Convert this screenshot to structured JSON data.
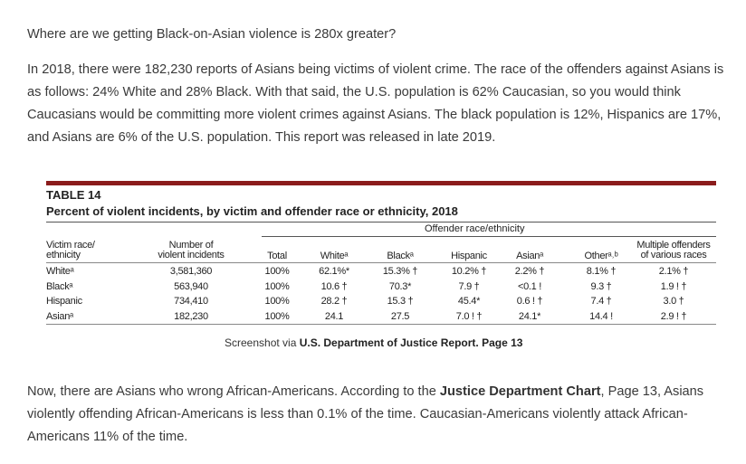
{
  "article": {
    "question": "Where are we getting Black-on-Asian violence is 280x greater?",
    "paragraph": "In 2018, there were 182,230 reports of Asians being victims of violent crime. The race of the offenders against Asians is as follows: 24% White and 28% Black. With that said, the U.S. population is 62% Caucasian, so you would think Caucasians would be committing more violent crimes against Asians. The black population is 12%, Hispanics are 17%, and Asians are 6% of the U.S. population. This report was released in late 2019.",
    "closing": {
      "before": "Now, there are Asians who wrong African-Americans. According to the ",
      "bold": "Justice Department Chart",
      "after": ", Page 13, Asians violently offending African-Americans is less than 0.1% of the time. Caucasian-Americans violently attack African-Americans 11% of the time."
    }
  },
  "table": {
    "label": "TABLE 14",
    "caption": "Percent of violent incidents, by victim and offender race or ethnicity, 2018",
    "group_header": "Offender race/ethnicity",
    "columns": [
      {
        "l1": "Victim race/",
        "l2": "ethnicity"
      },
      {
        "l1": "Number of",
        "l2": "violent incidents"
      },
      {
        "l1": "",
        "l2": "Total"
      },
      {
        "l1": "",
        "l2": "Whiteᵃ"
      },
      {
        "l1": "",
        "l2": "Blackᵃ"
      },
      {
        "l1": "",
        "l2": "Hispanic"
      },
      {
        "l1": "",
        "l2": "Asianᵃ"
      },
      {
        "l1": "",
        "l2": "Otherᵃ˒ᵇ"
      },
      {
        "l1": "Multiple offenders",
        "l2": "of various races"
      }
    ],
    "rows": [
      [
        "Whiteᵃ",
        "3,581,360",
        "100%",
        "62.1%*",
        "15.3% †",
        "10.2% †",
        "2.2% †",
        "8.1% †",
        "2.1% †"
      ],
      [
        "Blackᵃ",
        "563,940",
        "100%",
        "10.6 †",
        "70.3*",
        "7.9 †",
        "<0.1 !",
        "9.3 †",
        "1.9 ! †"
      ],
      [
        "Hispanic",
        "734,410",
        "100%",
        "28.2 †",
        "15.3 †",
        "45.4*",
        "0.6 ! †",
        "7.4 †",
        "3.0 †"
      ],
      [
        "Asianᵃ",
        "182,230",
        "100%",
        "24.1",
        "27.5",
        "7.0 ! †",
        "24.1*",
        "14.4 !",
        "2.9 ! †"
      ]
    ]
  },
  "credit": {
    "prefix": "Screenshot via ",
    "source": "U.S. Department of Justice Report. Page 13"
  }
}
